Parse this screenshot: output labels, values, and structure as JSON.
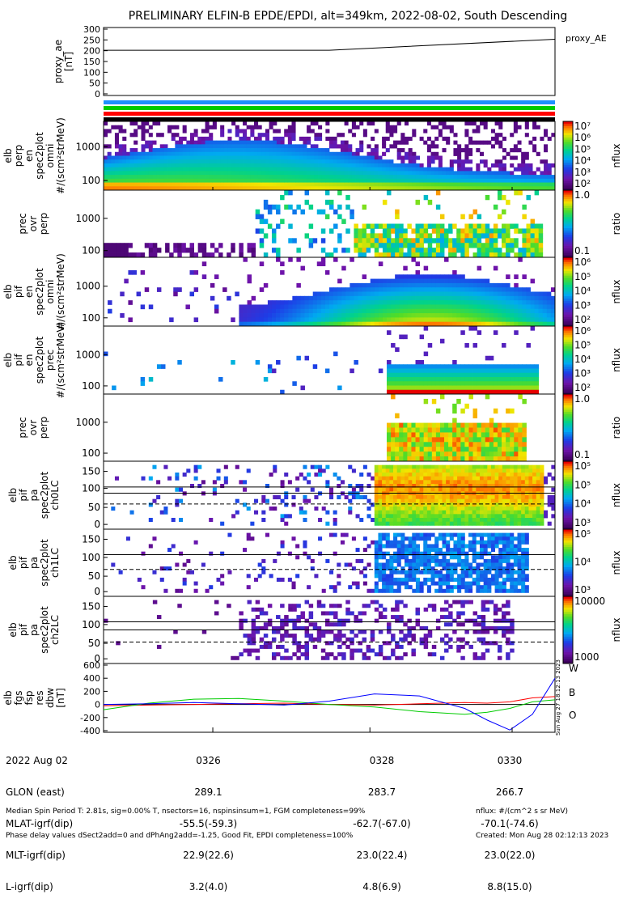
{
  "title": "PRELIMINARY ELFIN-B EPDE/EPDI, alt=349km, 2022-08-02, South Descending",
  "colors": {
    "red": "#ff0000",
    "green": "#00cc00",
    "blue": "#0000ff",
    "band_blue": "#1e90ff"
  },
  "chart_data": [
    {
      "type": "line",
      "id": "proxy_ae",
      "ylabel": [
        "proxy_ae",
        "[nT]"
      ],
      "ylim": [
        0,
        300
      ],
      "yticks": [
        "0",
        "50",
        "100",
        "150",
        "200",
        "250",
        "300"
      ],
      "tick_values": [
        0,
        50,
        100,
        150,
        200,
        250,
        300
      ],
      "legend": "proxy_AE",
      "series": [
        {
          "name": "proxy_AE",
          "x": [
            0,
            0.5,
            1
          ],
          "values": [
            202,
            202,
            253
          ]
        }
      ]
    },
    {
      "type": "heatmap",
      "id": "en-perp",
      "ylabel": [
        "elb",
        "perp",
        "en",
        "spec2plot",
        "omni",
        "#/(scm²strMeV)"
      ],
      "yticks": [
        "1000",
        "100"
      ],
      "colorbar_labels": [
        "10⁷",
        "10⁶",
        "10⁵",
        "10⁴",
        "10³",
        "10²"
      ],
      "colorbar_title": "nflux"
    },
    {
      "type": "heatmap",
      "id": "ratio-1",
      "ylabel": [
        "prec",
        "ovr",
        "perp"
      ],
      "yticks": [
        "1000",
        "100"
      ],
      "colorbar_labels": [
        "1.0",
        "0.1"
      ],
      "colorbar_title": "ratio"
    },
    {
      "type": "heatmap",
      "id": "en-omni",
      "ylabel": [
        "elb",
        "pif",
        "en",
        "spec2plot",
        "omni",
        "#/(scm²strMeV)"
      ],
      "yticks": [
        "1000",
        "100"
      ],
      "colorbar_labels": [
        "10⁶",
        "10⁵",
        "10⁴",
        "10³",
        "10²"
      ],
      "colorbar_title": "nflux"
    },
    {
      "type": "heatmap",
      "id": "en-prec",
      "ylabel": [
        "elb",
        "pif",
        "en",
        "spec2plot",
        "prec",
        "#/(scm²strMeV)"
      ],
      "yticks": [
        "1000",
        "100"
      ],
      "colorbar_labels": [
        "10⁶",
        "10⁵",
        "10⁴",
        "10³",
        "10²"
      ],
      "colorbar_title": "nflux"
    },
    {
      "type": "heatmap",
      "id": "ratio-2",
      "ylabel": [
        "prec",
        "ovr",
        "perp"
      ],
      "yticks": [
        "1000",
        "100"
      ],
      "colorbar_labels": [
        "1.0",
        "0.1"
      ],
      "colorbar_title": "ratio"
    },
    {
      "type": "heatmap",
      "id": "pa-ch0",
      "ylabel": [
        "elb",
        "pif",
        "pa",
        "spec2plot",
        "ch0LC"
      ],
      "yticks": [
        "150",
        "100",
        "50",
        "0"
      ],
      "colorbar_labels": [
        "10⁵",
        "10⁵",
        "10⁴",
        "10³"
      ],
      "colorbar_title": "nflux"
    },
    {
      "type": "heatmap",
      "id": "pa-ch1",
      "ylabel": [
        "elb",
        "pif",
        "pa",
        "spec2plot",
        "ch1LC"
      ],
      "yticks": [
        "150",
        "100",
        "50",
        "0"
      ],
      "colorbar_labels": [
        "10⁵",
        "10⁴",
        "10³"
      ],
      "colorbar_title": "nflux"
    },
    {
      "type": "heatmap",
      "id": "pa-ch2",
      "ylabel": [
        "elb",
        "pif",
        "pa",
        "spec2plot",
        "ch2LC"
      ],
      "yticks": [
        "150",
        "100",
        "50",
        "0"
      ],
      "colorbar_labels": [
        "10000",
        "1000"
      ],
      "colorbar_title": "nflux"
    },
    {
      "type": "line",
      "id": "fgs",
      "ylabel": [
        "elb",
        "fgs",
        "fsp",
        "res",
        "dbw",
        "[nT]"
      ],
      "ylim": [
        -400,
        600
      ],
      "yticks": [
        "600",
        "400",
        "200",
        "0",
        "-200",
        "-400"
      ],
      "tick_values": [
        600,
        400,
        200,
        0,
        -200,
        -400
      ],
      "legend": [
        "W",
        "B",
        "O"
      ],
      "series": [
        {
          "name": "W",
          "x": [
            0,
            0.1,
            0.2,
            0.3,
            0.4,
            0.5,
            0.6,
            0.7,
            0.8,
            0.85,
            0.9,
            0.95,
            1.0
          ],
          "values": [
            -20,
            -10,
            0,
            10,
            20,
            0,
            -10,
            10,
            30,
            20,
            40,
            100,
            120
          ]
        },
        {
          "name": "B",
          "x": [
            0,
            0.1,
            0.2,
            0.3,
            0.4,
            0.5,
            0.6,
            0.7,
            0.8,
            0.85,
            0.9,
            0.95,
            1.0
          ],
          "values": [
            -80,
            20,
            80,
            90,
            50,
            0,
            -40,
            -110,
            -150,
            -120,
            -60,
            40,
            70
          ]
        },
        {
          "name": "O",
          "x": [
            0,
            0.1,
            0.2,
            0.3,
            0.4,
            0.5,
            0.6,
            0.7,
            0.8,
            0.85,
            0.9,
            0.95,
            1.0
          ],
          "values": [
            0,
            10,
            30,
            10,
            -10,
            50,
            160,
            130,
            -60,
            -240,
            -390,
            -150,
            400
          ]
        }
      ]
    }
  ],
  "x_axis": {
    "ticks": [
      "0326",
      "0328",
      "0330"
    ],
    "row_labels": [
      "2022 Aug 02",
      "GLON (east)",
      "MLAT-igrf(dip)",
      "MLT-igrf(dip)",
      "L-igrf(dip)"
    ],
    "columns": [
      [
        "0326",
        "289.1",
        "-55.5(-59.3)",
        "22.9(22.6)",
        "3.2(4.0)"
      ],
      [
        "0328",
        "283.7",
        "-62.7(-67.0)",
        "23.0(22.4)",
        "4.8(6.9)"
      ],
      [
        "0330",
        "266.7",
        "-70.1(-74.6)",
        "23.0(22.0)",
        "8.8(15.0)"
      ]
    ]
  },
  "footer": {
    "line1": "Median Spin Period T: 2.81s, sig=0.00% T, nsectors=16, nspinsinsum=1, FGM completeness=99%",
    "line2": "Phase delay values dSect2add=0 and dPhAng2add=-1.25, Good Fit, EPDI completeness=100%",
    "units": "nflux: #/(cm^2 s sr MeV)",
    "created": "Created: Mon Aug 28 02:12:13 2023",
    "stamp": "Sun Aug 27 18:12:13 2023"
  }
}
